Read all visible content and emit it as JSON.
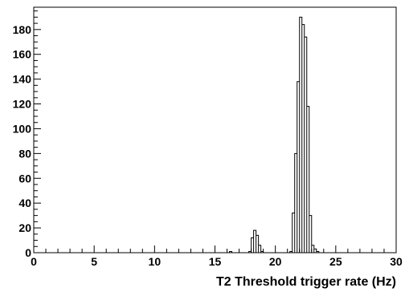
{
  "chart_data": {
    "type": "bar",
    "style": "step-histogram",
    "title": "",
    "xlabel": "T2 Threshold trigger rate (Hz)",
    "ylabel": "",
    "xlim": [
      0,
      30
    ],
    "ylim": [
      0,
      198
    ],
    "bin_width": 0.2,
    "x_major_ticks": [
      0,
      5,
      10,
      15,
      20,
      25,
      30
    ],
    "y_major_ticks": [
      0,
      20,
      40,
      60,
      80,
      100,
      120,
      140,
      160,
      180
    ],
    "grid": false,
    "legend": "none",
    "line_color": "#000000",
    "bins": [
      {
        "x": 16.2,
        "y": 1
      },
      {
        "x": 17.8,
        "y": 1
      },
      {
        "x": 18.0,
        "y": 12
      },
      {
        "x": 18.2,
        "y": 18
      },
      {
        "x": 18.4,
        "y": 14
      },
      {
        "x": 18.6,
        "y": 6
      },
      {
        "x": 18.8,
        "y": 1
      },
      {
        "x": 21.2,
        "y": 1
      },
      {
        "x": 21.4,
        "y": 32
      },
      {
        "x": 21.6,
        "y": 80
      },
      {
        "x": 21.8,
        "y": 138
      },
      {
        "x": 22.0,
        "y": 190
      },
      {
        "x": 22.2,
        "y": 184
      },
      {
        "x": 22.4,
        "y": 174
      },
      {
        "x": 22.6,
        "y": 118
      },
      {
        "x": 22.8,
        "y": 30
      },
      {
        "x": 23.0,
        "y": 6
      },
      {
        "x": 23.2,
        "y": 3
      },
      {
        "x": 23.4,
        "y": 1
      }
    ]
  }
}
